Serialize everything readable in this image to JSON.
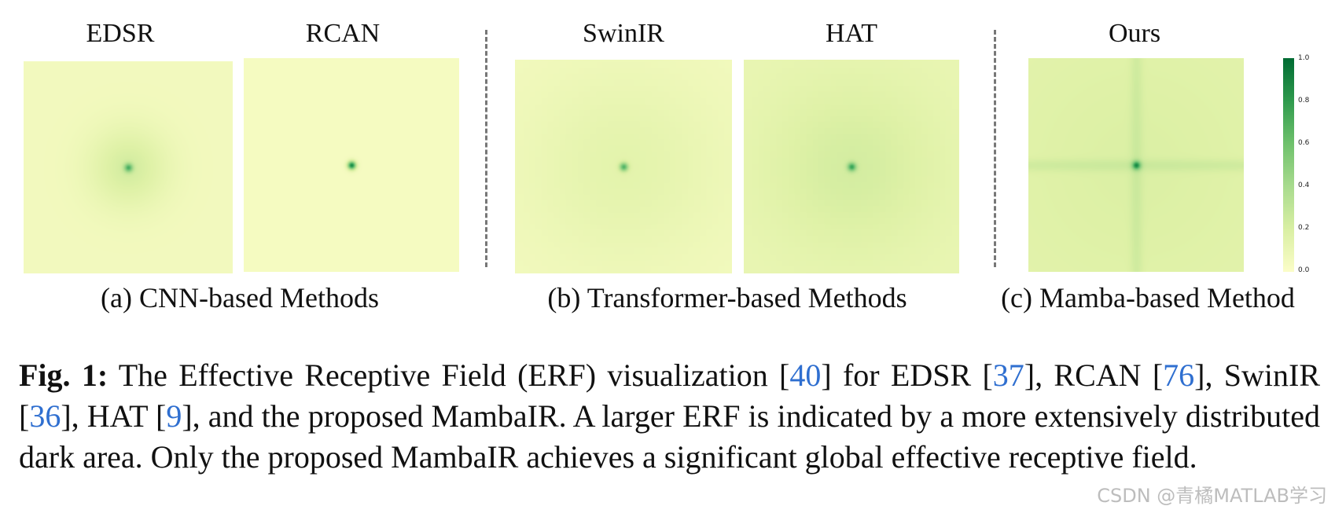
{
  "figure": {
    "panels": [
      {
        "title": "EDSR",
        "sigma": 0.09,
        "spot": 0.5,
        "cross": 0,
        "blocky": 0,
        "base": 0.06,
        "glow": 0.18
      },
      {
        "title": "RCAN",
        "sigma": 0.035,
        "spot": 0.85,
        "cross": 0,
        "blocky": 0,
        "base": 0.04,
        "glow": 0
      },
      {
        "title": "SwinIR",
        "sigma": 0.22,
        "spot": 0.55,
        "cross": 0,
        "blocky": 1,
        "base": 0.06,
        "glow": 0.1
      },
      {
        "title": "HAT",
        "sigma": 0.2,
        "spot": 0.55,
        "cross": 0,
        "blocky": 1,
        "base": 0.12,
        "glow": 0.12
      },
      {
        "title": "Ours",
        "sigma": 0.3,
        "spot": 0.55,
        "cross": 1,
        "blocky": 0,
        "base": 0.16,
        "glow": 0.05
      }
    ],
    "groups": [
      "(a) CNN-based Methods",
      "(b) Transformer-based Methods",
      "(c) Mamba-based Method"
    ],
    "colorbar": {
      "ticks": [
        "1.0",
        "0.8",
        "0.6",
        "0.4",
        "0.2",
        "0.0"
      ],
      "colormap": "YlGn",
      "low_color": "#fbfdc8",
      "high_color": "#006b33"
    }
  },
  "caption": {
    "label": "Fig. 1:",
    "segments": [
      {
        "text": " The Effective Receptive Field (ERF) visualization ["
      },
      {
        "text": "40",
        "ref": true
      },
      {
        "text": "] for EDSR ["
      },
      {
        "text": "37",
        "ref": true
      },
      {
        "text": "], RCAN ["
      },
      {
        "text": "76",
        "ref": true
      },
      {
        "text": "], SwinIR ["
      },
      {
        "text": "36",
        "ref": true
      },
      {
        "text": "], HAT ["
      },
      {
        "text": "9",
        "ref": true
      },
      {
        "text": "], and the proposed MambaIR. A larger ERF is indicated by a more extensively distributed dark area. Only the proposed MambaIR achieves a significant global effective receptive field."
      }
    ]
  },
  "watermark": "CSDN @青橘MATLAB学习"
}
